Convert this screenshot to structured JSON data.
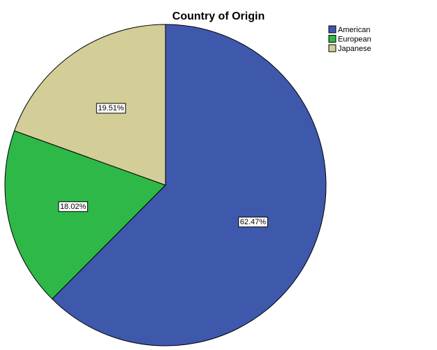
{
  "chart_data": {
    "type": "pie",
    "title": "Country of Origin",
    "start_angle_deg": 0,
    "direction": "clockwise",
    "slices": [
      {
        "label": "American",
        "value": 62.47,
        "display": "62.47%",
        "color": "#3e58ac"
      },
      {
        "label": "European",
        "value": 18.02,
        "display": "18.02%",
        "color": "#2eb848"
      },
      {
        "label": "Japanese",
        "value": 19.51,
        "display": "19.51%",
        "color": "#d3ce97"
      }
    ],
    "legend": {
      "position": "top-right",
      "items": [
        "American",
        "European",
        "Japanese"
      ]
    }
  }
}
